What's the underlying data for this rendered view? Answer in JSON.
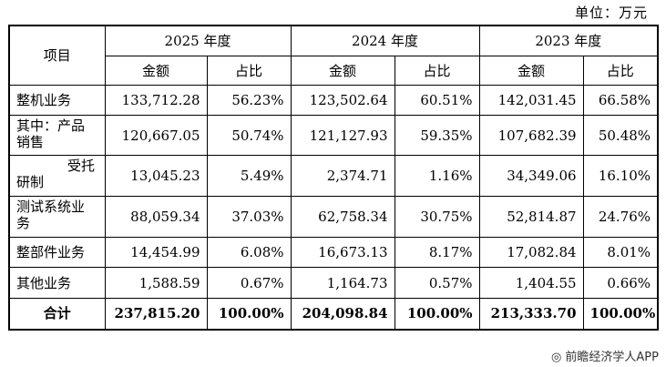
{
  "unit_label": "单位：万元",
  "footer": "◎ 前瞻经济学人APP",
  "headers": {
    "item": "项目",
    "years": [
      "2025 年度",
      "2024 年度",
      "2023 年度"
    ],
    "amount": "金额",
    "share": "占比"
  },
  "rows": [
    {
      "name": "整机业务",
      "v": [
        "133,712.28",
        "56.23%",
        "123,502.64",
        "60.51%",
        "142,031.45",
        "66.58%"
      ]
    },
    {
      "name_l1": "其中：产品",
      "name_l2": "销售",
      "v": [
        "120,667.05",
        "50.74%",
        "121,127.93",
        "59.35%",
        "107,682.39",
        "50.48%"
      ]
    },
    {
      "name_l1": "受托",
      "name_l2": "研制",
      "v": [
        "13,045.23",
        "5.49%",
        "2,374.71",
        "1.16%",
        "34,349.06",
        "16.10%"
      ]
    },
    {
      "name_l1": "测试系统业",
      "name_l2": "务",
      "v": [
        "88,059.34",
        "37.03%",
        "62,758.34",
        "30.75%",
        "52,814.87",
        "24.76%"
      ]
    },
    {
      "name": "整部件业务",
      "v": [
        "14,454.99",
        "6.08%",
        "16,673.13",
        "8.17%",
        "17,082.84",
        "8.01%"
      ]
    },
    {
      "name": "其他业务",
      "v": [
        "1,588.59",
        "0.67%",
        "1,164.73",
        "0.57%",
        "1,404.55",
        "0.66%"
      ]
    },
    {
      "name": "合计",
      "v": [
        "237,815.20",
        "100.00%",
        "204,098.84",
        "100.00%",
        "213,333.70",
        "100.00%"
      ]
    }
  ]
}
